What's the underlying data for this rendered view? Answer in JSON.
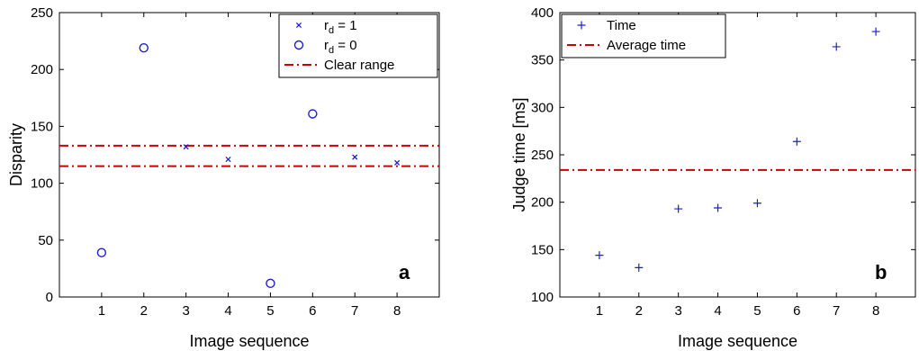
{
  "chart_data": [
    {
      "type": "scatter",
      "panel_label": "a",
      "xlabel": "Image sequence",
      "ylabel": "Disparity",
      "xlim": [
        0,
        9
      ],
      "ylim": [
        0,
        250
      ],
      "x_ticks": [
        "1",
        "2",
        "3",
        "4",
        "5",
        "6",
        "7",
        "8"
      ],
      "y_ticks": [
        "0",
        "50",
        "100",
        "150",
        "200",
        "250"
      ],
      "grid": false,
      "legend_position": "top-right",
      "series": [
        {
          "name_main": "r",
          "name_sub": "d",
          "name_rest": " = 1",
          "marker": "x",
          "color": "#1f1fd0",
          "x": [
            3,
            4,
            7,
            8
          ],
          "y": [
            132,
            121,
            123,
            118
          ]
        },
        {
          "name_main": "r",
          "name_sub": "d",
          "name_rest": " = 0",
          "marker": "o",
          "color": "#1f1fd0",
          "x": [
            1,
            2,
            5,
            6
          ],
          "y": [
            39,
            219,
            12,
            161
          ]
        }
      ],
      "reference_lines": {
        "name": "Clear range",
        "style": "dash-dot",
        "color": "#cc0000",
        "y": [
          133,
          115
        ]
      }
    },
    {
      "type": "scatter",
      "panel_label": "b",
      "xlabel": "Image sequence",
      "ylabel": "Judge time [ms]",
      "xlim": [
        0,
        9
      ],
      "ylim": [
        100,
        400
      ],
      "x_ticks": [
        "1",
        "2",
        "3",
        "4",
        "5",
        "6",
        "7",
        "8"
      ],
      "y_ticks": [
        "100",
        "150",
        "200",
        "250",
        "300",
        "350",
        "400"
      ],
      "grid": false,
      "legend_position": "top-left",
      "series": [
        {
          "name": "Time",
          "marker": "+",
          "color": "#1f1fd0",
          "x": [
            1,
            2,
            3,
            4,
            5,
            6,
            7,
            8
          ],
          "y": [
            144,
            131,
            193,
            194,
            199,
            264,
            364,
            380
          ]
        }
      ],
      "reference_lines": {
        "name": "Average time",
        "style": "dash-dot",
        "color": "#cc0000",
        "y": [
          234
        ]
      }
    }
  ]
}
